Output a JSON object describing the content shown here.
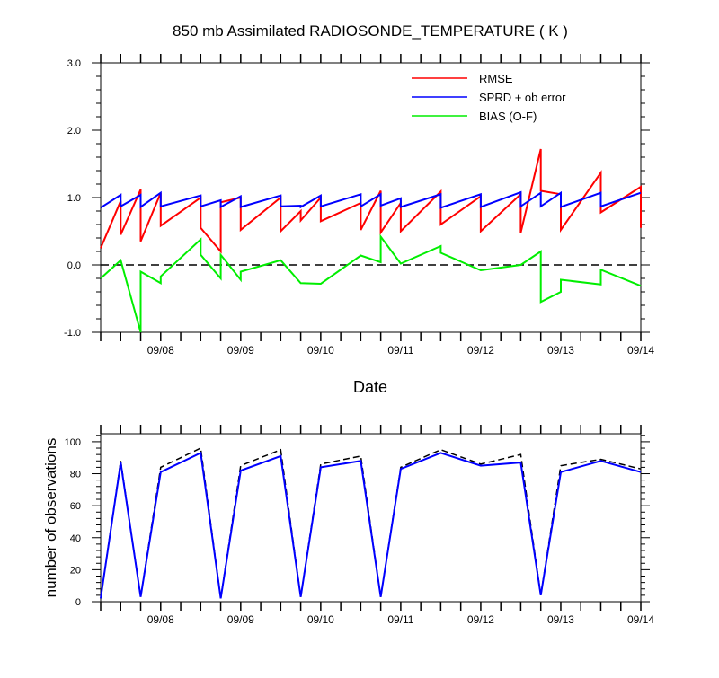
{
  "colors": {
    "rmse": "#ff0000",
    "spread": "#0000ff",
    "bias": "#00ee00",
    "zero_line": "#000000",
    "obs_assim": "#0000ff",
    "obs_total": "#000000"
  },
  "chart_data": [
    {
      "type": "line",
      "title": "850 mb Assimilated RADIOSONDE_TEMPERATURE ( K )",
      "xlabel": "Date",
      "ylabel": "",
      "ylim": [
        -1.0,
        3.0
      ],
      "yticks": [
        -1.0,
        0.0,
        1.0,
        2.0,
        3.0
      ],
      "ytick_labels": [
        "-1.0",
        "0.0",
        "1.0",
        "2.0",
        "3.0"
      ],
      "xlim": [
        7.25,
        14.0
      ],
      "xticks": [
        8,
        9,
        10,
        11,
        12,
        13,
        14
      ],
      "xtick_labels": [
        "09/08",
        "09/09",
        "09/10",
        "09/11",
        "09/12",
        "09/13",
        "09/14"
      ],
      "grid": false,
      "legend": "top-right",
      "zero_line": "dashed",
      "series": [
        {
          "name": "RMSE",
          "color": "#ff0000",
          "x": [
            7.25,
            7.5,
            7.5,
            7.75,
            7.75,
            8.0,
            8.0,
            8.5,
            8.5,
            8.75,
            8.75,
            9.0,
            9.0,
            9.5,
            9.5,
            9.75,
            9.75,
            10.0,
            10.0,
            10.5,
            10.5,
            10.75,
            10.75,
            11.0,
            11.0,
            11.5,
            11.5,
            12.0,
            12.0,
            12.5,
            12.5,
            12.75,
            12.75,
            13.0,
            13.0,
            13.5,
            13.5,
            14.0,
            14.0
          ],
          "y": [
            0.25,
            0.95,
            0.45,
            1.12,
            0.35,
            1.07,
            0.58,
            1.0,
            0.55,
            0.2,
            0.93,
            1.0,
            0.52,
            1.0,
            0.5,
            0.8,
            0.66,
            1.0,
            0.65,
            0.92,
            0.52,
            1.1,
            0.48,
            0.92,
            0.5,
            1.09,
            0.6,
            1.02,
            0.5,
            1.05,
            0.48,
            1.72,
            1.1,
            1.05,
            0.52,
            1.37,
            0.78,
            1.16,
            0.55
          ]
        },
        {
          "name": "SPRD + ob error",
          "color": "#0000ff",
          "x": [
            7.25,
            7.5,
            7.5,
            7.75,
            7.75,
            8.0,
            8.0,
            8.5,
            8.5,
            8.75,
            8.75,
            9.0,
            9.0,
            9.5,
            9.5,
            9.75,
            9.75,
            10.0,
            10.0,
            10.5,
            10.5,
            10.75,
            10.75,
            11.0,
            11.0,
            11.5,
            11.5,
            12.0,
            12.0,
            12.5,
            12.5,
            12.75,
            12.75,
            13.0,
            13.0,
            13.5,
            13.5,
            14.0
          ],
          "y": [
            0.85,
            1.04,
            0.87,
            1.04,
            0.86,
            1.07,
            0.87,
            1.03,
            0.87,
            0.96,
            0.86,
            1.02,
            0.86,
            1.03,
            0.87,
            0.88,
            0.86,
            1.03,
            0.87,
            1.05,
            0.87,
            1.05,
            0.88,
            0.99,
            0.86,
            1.05,
            0.85,
            1.05,
            0.86,
            1.08,
            0.87,
            1.07,
            0.87,
            1.07,
            0.86,
            1.07,
            0.87,
            1.07
          ]
        },
        {
          "name": "BIAS (O-F)",
          "color": "#00ee00",
          "x": [
            7.25,
            7.5,
            7.75,
            7.75,
            8.0,
            8.0,
            8.5,
            8.5,
            8.75,
            8.75,
            9.0,
            9.0,
            9.5,
            9.75,
            10.0,
            10.5,
            10.75,
            10.75,
            11.0,
            11.5,
            11.5,
            12.0,
            12.5,
            12.75,
            12.75,
            13.0,
            13.0,
            13.5,
            13.5,
            14.0
          ],
          "y": [
            -0.2,
            0.07,
            -1.0,
            -0.1,
            -0.27,
            -0.17,
            0.38,
            0.15,
            -0.2,
            0.15,
            -0.22,
            -0.1,
            0.07,
            -0.27,
            -0.28,
            0.14,
            0.04,
            0.42,
            0.02,
            0.28,
            0.18,
            -0.08,
            0.0,
            0.2,
            -0.55,
            -0.4,
            -0.22,
            -0.29,
            -0.07,
            -0.31
          ]
        }
      ]
    },
    {
      "type": "line",
      "title": "",
      "xlabel": "",
      "ylabel": "number of observations",
      "ylim": [
        0,
        105
      ],
      "yticks": [
        0,
        20,
        40,
        60,
        80,
        100
      ],
      "ytick_labels": [
        "0",
        "20",
        "40",
        "60",
        "80",
        "100"
      ],
      "xlim": [
        7.25,
        14.0
      ],
      "xticks": [
        8,
        9,
        10,
        11,
        12,
        13,
        14
      ],
      "xtick_labels": [
        "09/08",
        "09/09",
        "09/10",
        "09/11",
        "09/12",
        "09/13",
        "09/14"
      ],
      "grid": false,
      "series": [
        {
          "style": "dashed",
          "color": "#000000",
          "x": [
            7.25,
            7.5,
            7.75,
            8.0,
            8.5,
            8.75,
            9.0,
            9.5,
            9.75,
            10.0,
            10.5,
            10.75,
            11.0,
            11.5,
            12.0,
            12.5,
            12.75,
            13.0,
            13.5,
            14.0
          ],
          "y": [
            2,
            88,
            3,
            84,
            96,
            2,
            85,
            95,
            3,
            86,
            91,
            3,
            84,
            95,
            86,
            92,
            4,
            85,
            89,
            83
          ]
        },
        {
          "style": "solid",
          "color": "#0000ff",
          "x": [
            7.25,
            7.5,
            7.75,
            8.0,
            8.5,
            8.75,
            9.0,
            9.5,
            9.75,
            10.0,
            10.5,
            10.75,
            11.0,
            11.5,
            12.0,
            12.5,
            12.75,
            13.0,
            13.5,
            14.0
          ],
          "y": [
            2,
            87,
            3,
            81,
            93,
            2,
            82,
            91,
            3,
            84,
            88,
            3,
            83,
            93,
            85,
            87,
            4,
            81,
            88,
            81
          ]
        }
      ]
    }
  ]
}
